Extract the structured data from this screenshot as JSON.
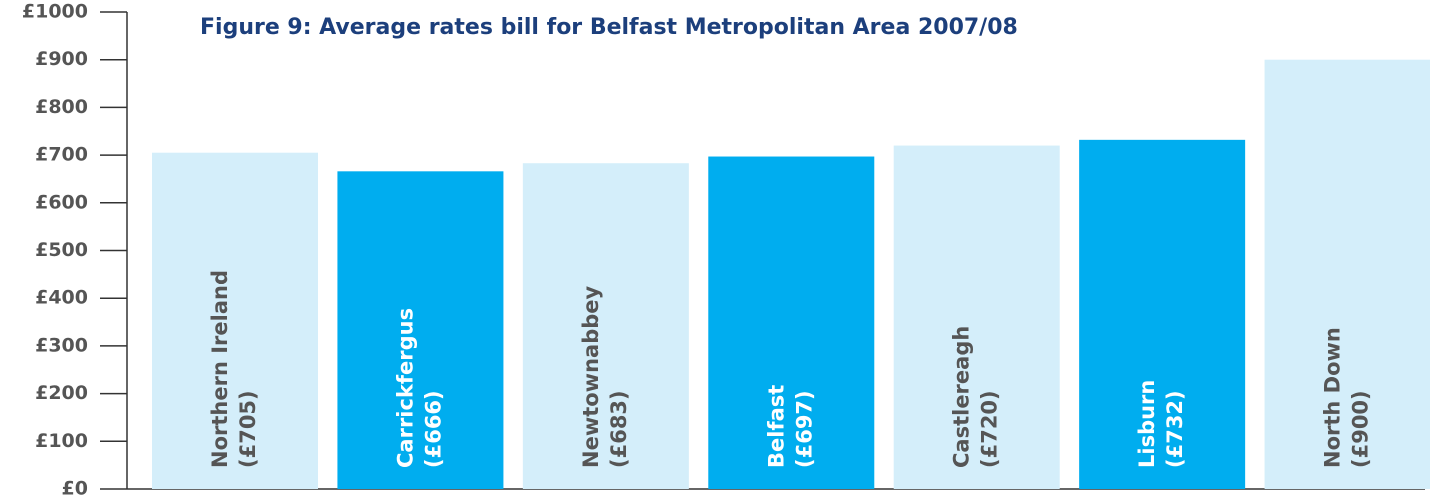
{
  "chart_data": {
    "type": "bar",
    "title": "Figure 9: Average rates bill for Belfast Metropolitan Area 2007/08",
    "categories": [
      "Northern Ireland",
      "Carrickfergus",
      "Newtownabbey",
      "Belfast",
      "Castlereagh",
      "Lisburn",
      "North Down"
    ],
    "values": [
      705,
      666,
      683,
      697,
      720,
      732,
      900
    ],
    "value_labels": [
      "(£705)",
      "(£666)",
      "(£683)",
      "(£697)",
      "(£720)",
      "(£732)",
      "(£900)"
    ],
    "colors": [
      "#d4eefa",
      "#00adef",
      "#d4eefa",
      "#00adef",
      "#d4eefa",
      "#00adef",
      "#d4eefa"
    ],
    "label_colors": [
      "#555555",
      "#ffffff",
      "#555555",
      "#ffffff",
      "#555555",
      "#ffffff",
      "#555555"
    ],
    "ylim": [
      0,
      1000
    ],
    "yticks": [
      {
        "value": 0,
        "label": "£0"
      },
      {
        "value": 100,
        "label": "£100"
      },
      {
        "value": 200,
        "label": "£200"
      },
      {
        "value": 300,
        "label": "£300"
      },
      {
        "value": 400,
        "label": "£400"
      },
      {
        "value": 500,
        "label": "£500"
      },
      {
        "value": 600,
        "label": "£600"
      },
      {
        "value": 700,
        "label": "£700"
      },
      {
        "value": 800,
        "label": "£800"
      },
      {
        "value": 900,
        "label": "£900"
      },
      {
        "value": 1000,
        "label": "£1000"
      }
    ]
  }
}
